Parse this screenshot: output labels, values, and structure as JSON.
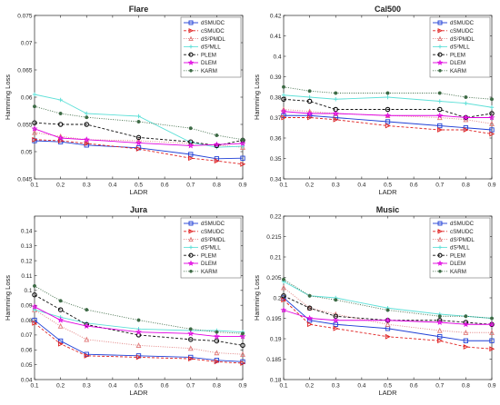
{
  "figure": {
    "x_values": [
      0.1,
      0.2,
      0.3,
      0.4,
      0.5,
      0.6,
      0.7,
      0.8,
      0.9
    ],
    "x_tick_labels": [
      "0.1",
      "0.2",
      "0.3",
      "0.4",
      "0.5",
      "0.6",
      "0.7",
      "0.8",
      "0.9"
    ],
    "legend_labels": [
      "dSMUDC",
      "cSMUDC",
      "dS²PMDL",
      "dS²MLL",
      "PLEM",
      "DLEM",
      "KARM"
    ],
    "series_style": [
      {
        "color": "#1f3fd6",
        "dash": "",
        "marker": "square"
      },
      {
        "color": "#e02020",
        "dash": "3,2",
        "marker": "triangle-right"
      },
      {
        "color": "#e07a7a",
        "dash": "1,1.5",
        "marker": "triangle-up"
      },
      {
        "color": "#5fe0d8",
        "dash": "",
        "marker": "plus"
      },
      {
        "color": "#111111",
        "dash": "3,2",
        "marker": "circle"
      },
      {
        "color": "#e000e0",
        "dash": "",
        "marker": "star"
      },
      {
        "color": "#3d6a45",
        "dash": "1,1.5",
        "marker": "dot"
      }
    ]
  },
  "chart_data": [
    {
      "type": "line",
      "title": "Flare",
      "xlabel": "LADR",
      "ylabel": "Hamming Loss",
      "xlim": [
        0.1,
        0.9
      ],
      "ylim": [
        0.045,
        0.075
      ],
      "y_tick_labels": [
        "0.045",
        "0.05",
        "0.055",
        "0.06",
        "0.065",
        "0.07",
        "0.075"
      ],
      "grid": false,
      "legend": "top-right",
      "series": [
        {
          "name": "dSMUDC",
          "x": [
            0.1,
            0.2,
            0.3,
            0.5,
            0.7,
            0.8,
            0.9
          ],
          "y": [
            0.052,
            0.0518,
            0.0512,
            0.0507,
            0.0495,
            0.0487,
            0.0488
          ]
        },
        {
          "name": "cSMUDC",
          "x": [
            0.1,
            0.2,
            0.3,
            0.5,
            0.7,
            0.8,
            0.9
          ],
          "y": [
            0.0522,
            0.052,
            0.0515,
            0.0505,
            0.0488,
            0.0483,
            0.0477
          ]
        },
        {
          "name": "dS²PMDL",
          "x": [
            0.1,
            0.2,
            0.3,
            0.5,
            0.7,
            0.8,
            0.9
          ],
          "y": [
            0.0535,
            0.0528,
            0.0522,
            0.052,
            0.0515,
            0.0512,
            0.0508
          ]
        },
        {
          "name": "dS²MLL",
          "x": [
            0.1,
            0.2,
            0.3,
            0.5,
            0.7,
            0.8,
            0.9
          ],
          "y": [
            0.0605,
            0.0595,
            0.057,
            0.0565,
            0.0517,
            0.0508,
            0.051
          ]
        },
        {
          "name": "PLEM",
          "x": [
            0.1,
            0.2,
            0.3,
            0.5,
            0.7,
            0.8,
            0.9
          ],
          "y": [
            0.0553,
            0.055,
            0.055,
            0.0526,
            0.0518,
            0.0511,
            0.0521
          ]
        },
        {
          "name": "DLEM",
          "x": [
            0.1,
            0.2,
            0.3,
            0.5,
            0.7,
            0.8,
            0.9
          ],
          "y": [
            0.0542,
            0.0525,
            0.0522,
            0.0516,
            0.0511,
            0.0513,
            0.0515
          ]
        },
        {
          "name": "KARM",
          "x": [
            0.1,
            0.2,
            0.3,
            0.5,
            0.7,
            0.8,
            0.9
          ],
          "y": [
            0.0583,
            0.057,
            0.0563,
            0.0555,
            0.0543,
            0.053,
            0.0522
          ]
        }
      ]
    },
    {
      "type": "line",
      "title": "Cal500",
      "xlabel": "LADR",
      "ylabel": "Hamming Loss",
      "xlim": [
        0.1,
        0.9
      ],
      "ylim": [
        0.34,
        0.42
      ],
      "y_tick_labels": [
        "0.34",
        "0.35",
        "0.36",
        "0.37",
        "0.38",
        "0.39",
        "0.4",
        "0.41",
        "0.42"
      ],
      "grid": false,
      "legend": "top-right",
      "series": [
        {
          "name": "dSMUDC",
          "x": [
            0.1,
            0.2,
            0.3,
            0.5,
            0.7,
            0.8,
            0.9
          ],
          "y": [
            0.371,
            0.371,
            0.37,
            0.368,
            0.366,
            0.365,
            0.364
          ]
        },
        {
          "name": "cSMUDC",
          "x": [
            0.1,
            0.2,
            0.3,
            0.5,
            0.7,
            0.8,
            0.9
          ],
          "y": [
            0.37,
            0.37,
            0.369,
            0.366,
            0.364,
            0.364,
            0.362
          ]
        },
        {
          "name": "dS²PMDL",
          "x": [
            0.1,
            0.2,
            0.3,
            0.5,
            0.7,
            0.8,
            0.9
          ],
          "y": [
            0.374,
            0.373,
            0.372,
            0.371,
            0.37,
            0.369,
            0.367
          ]
        },
        {
          "name": "dS²MLL",
          "x": [
            0.1,
            0.2,
            0.3,
            0.5,
            0.7,
            0.8,
            0.9
          ],
          "y": [
            0.381,
            0.38,
            0.379,
            0.38,
            0.378,
            0.377,
            0.375
          ]
        },
        {
          "name": "PLEM",
          "x": [
            0.1,
            0.2,
            0.3,
            0.5,
            0.7,
            0.8,
            0.9
          ],
          "y": [
            0.379,
            0.378,
            0.374,
            0.374,
            0.374,
            0.37,
            0.372
          ]
        },
        {
          "name": "DLEM",
          "x": [
            0.1,
            0.2,
            0.3,
            0.5,
            0.7,
            0.8,
            0.9
          ],
          "y": [
            0.373,
            0.372,
            0.372,
            0.371,
            0.371,
            0.37,
            0.37
          ]
        },
        {
          "name": "KARM",
          "x": [
            0.1,
            0.2,
            0.3,
            0.5,
            0.7,
            0.8,
            0.9
          ],
          "y": [
            0.385,
            0.383,
            0.382,
            0.382,
            0.382,
            0.38,
            0.379
          ]
        }
      ]
    },
    {
      "type": "line",
      "title": "Jura",
      "xlabel": "LADR",
      "ylabel": "Hamming Loss",
      "xlim": [
        0.1,
        0.9
      ],
      "ylim": [
        0.04,
        0.15
      ],
      "y_tick_labels": [
        "0.04",
        "0.05",
        "0.06",
        "0.07",
        "0.08",
        "0.09",
        "0.1",
        "0.11",
        "0.12",
        "0.13",
        "0.14"
      ],
      "grid": false,
      "legend": "top-right",
      "series": [
        {
          "name": "dSMUDC",
          "x": [
            0.1,
            0.2,
            0.3,
            0.5,
            0.7,
            0.8,
            0.9
          ],
          "y": [
            0.08,
            0.066,
            0.057,
            0.056,
            0.055,
            0.053,
            0.052
          ]
        },
        {
          "name": "cSMUDC",
          "x": [
            0.1,
            0.2,
            0.3,
            0.5,
            0.7,
            0.8,
            0.9
          ],
          "y": [
            0.078,
            0.064,
            0.056,
            0.055,
            0.054,
            0.052,
            0.051
          ]
        },
        {
          "name": "dS²PMDL",
          "x": [
            0.1,
            0.2,
            0.3,
            0.5,
            0.7,
            0.8,
            0.9
          ],
          "y": [
            0.087,
            0.076,
            0.067,
            0.063,
            0.061,
            0.058,
            0.057
          ]
        },
        {
          "name": "dS²MLL",
          "x": [
            0.1,
            0.2,
            0.3,
            0.5,
            0.7,
            0.8,
            0.9
          ],
          "y": [
            0.087,
            0.082,
            0.078,
            0.074,
            0.073,
            0.073,
            0.072
          ]
        },
        {
          "name": "PLEM",
          "x": [
            0.1,
            0.2,
            0.3,
            0.5,
            0.7,
            0.8,
            0.9
          ],
          "y": [
            0.097,
            0.087,
            0.077,
            0.07,
            0.067,
            0.066,
            0.063
          ]
        },
        {
          "name": "DLEM",
          "x": [
            0.1,
            0.2,
            0.3,
            0.5,
            0.7,
            0.8,
            0.9
          ],
          "y": [
            0.089,
            0.08,
            0.076,
            0.072,
            0.071,
            0.069,
            0.069
          ]
        },
        {
          "name": "KARM",
          "x": [
            0.1,
            0.2,
            0.3,
            0.5,
            0.7,
            0.8,
            0.9
          ],
          "y": [
            0.103,
            0.093,
            0.087,
            0.08,
            0.074,
            0.072,
            0.071
          ]
        }
      ]
    },
    {
      "type": "line",
      "title": "Music",
      "xlabel": "LADR",
      "ylabel": "Hamming Loss",
      "xlim": [
        0.1,
        0.9
      ],
      "ylim": [
        0.18,
        0.22
      ],
      "y_tick_labels": [
        "0.18",
        "0.185",
        "0.19",
        "0.195",
        "0.2",
        "0.205",
        "0.21",
        "0.215",
        "0.22"
      ],
      "grid": false,
      "legend": "top-right",
      "series": [
        {
          "name": "dSMUDC",
          "x": [
            0.1,
            0.2,
            0.3,
            0.5,
            0.7,
            0.8,
            0.9
          ],
          "y": [
            0.2,
            0.1945,
            0.1935,
            0.1925,
            0.1905,
            0.1895,
            0.1895
          ]
        },
        {
          "name": "cSMUDC",
          "x": [
            0.1,
            0.2,
            0.3,
            0.5,
            0.7,
            0.8,
            0.9
          ],
          "y": [
            0.1995,
            0.1935,
            0.1925,
            0.1905,
            0.1895,
            0.188,
            0.1875
          ]
        },
        {
          "name": "dS²PMDL",
          "x": [
            0.1,
            0.2,
            0.3,
            0.5,
            0.7,
            0.8,
            0.9
          ],
          "y": [
            0.2025,
            0.1975,
            0.196,
            0.1935,
            0.192,
            0.1915,
            0.1915
          ]
        },
        {
          "name": "dS²MLL",
          "x": [
            0.1,
            0.2,
            0.3,
            0.5,
            0.7,
            0.8,
            0.9
          ],
          "y": [
            0.204,
            0.2005,
            0.2,
            0.1975,
            0.196,
            0.1955,
            0.195
          ]
        },
        {
          "name": "PLEM",
          "x": [
            0.1,
            0.2,
            0.3,
            0.5,
            0.7,
            0.8,
            0.9
          ],
          "y": [
            0.2005,
            0.1975,
            0.1955,
            0.1945,
            0.1945,
            0.194,
            0.1935
          ]
        },
        {
          "name": "DLEM",
          "x": [
            0.1,
            0.2,
            0.3,
            0.5,
            0.7,
            0.8,
            0.9
          ],
          "y": [
            0.197,
            0.195,
            0.1945,
            0.1945,
            0.194,
            0.1935,
            0.1935
          ]
        },
        {
          "name": "KARM",
          "x": [
            0.1,
            0.2,
            0.3,
            0.5,
            0.7,
            0.8,
            0.9
          ],
          "y": [
            0.2045,
            0.2005,
            0.1995,
            0.197,
            0.1955,
            0.1955,
            0.195
          ]
        }
      ]
    }
  ]
}
